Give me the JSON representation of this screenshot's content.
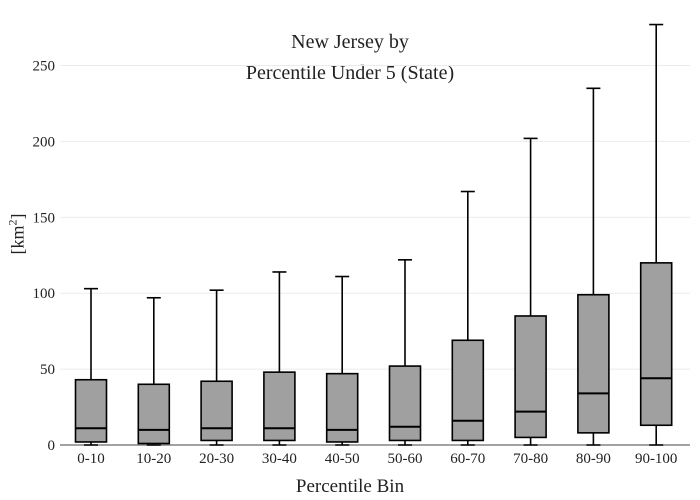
{
  "chart_data": {
    "type": "box",
    "title_line1": "New Jersey  by",
    "title_line2": "Percentile Under 5 (State)",
    "xlabel": "Percentile Bin",
    "ylabel_base": "[km",
    "ylabel_exp": "2",
    "ylabel_close": "]",
    "ylim": [
      0,
      280
    ],
    "yticks": [
      0,
      50,
      100,
      150,
      200,
      250
    ],
    "grid": true,
    "box_color": "#a0a0a0",
    "categories": [
      "0-10",
      "10-20",
      "20-30",
      "30-40",
      "40-50",
      "50-60",
      "60-70",
      "70-80",
      "80-90",
      "90-100"
    ],
    "boxes": [
      {
        "min": 0,
        "q1": 2,
        "median": 11,
        "q3": 43,
        "max": 103
      },
      {
        "min": 0,
        "q1": 1,
        "median": 10,
        "q3": 40,
        "max": 97
      },
      {
        "min": 0,
        "q1": 3,
        "median": 11,
        "q3": 42,
        "max": 102
      },
      {
        "min": 0,
        "q1": 3,
        "median": 11,
        "q3": 48,
        "max": 114
      },
      {
        "min": 0,
        "q1": 2,
        "median": 10,
        "q3": 47,
        "max": 111
      },
      {
        "min": 0,
        "q1": 3,
        "median": 12,
        "q3": 52,
        "max": 122
      },
      {
        "min": 0,
        "q1": 3,
        "median": 16,
        "q3": 69,
        "max": 167
      },
      {
        "min": 0,
        "q1": 5,
        "median": 22,
        "q3": 85,
        "max": 202
      },
      {
        "min": 0,
        "q1": 8,
        "median": 34,
        "q3": 99,
        "max": 235
      },
      {
        "min": 0,
        "q1": 13,
        "median": 44,
        "q3": 120,
        "max": 277
      }
    ]
  }
}
